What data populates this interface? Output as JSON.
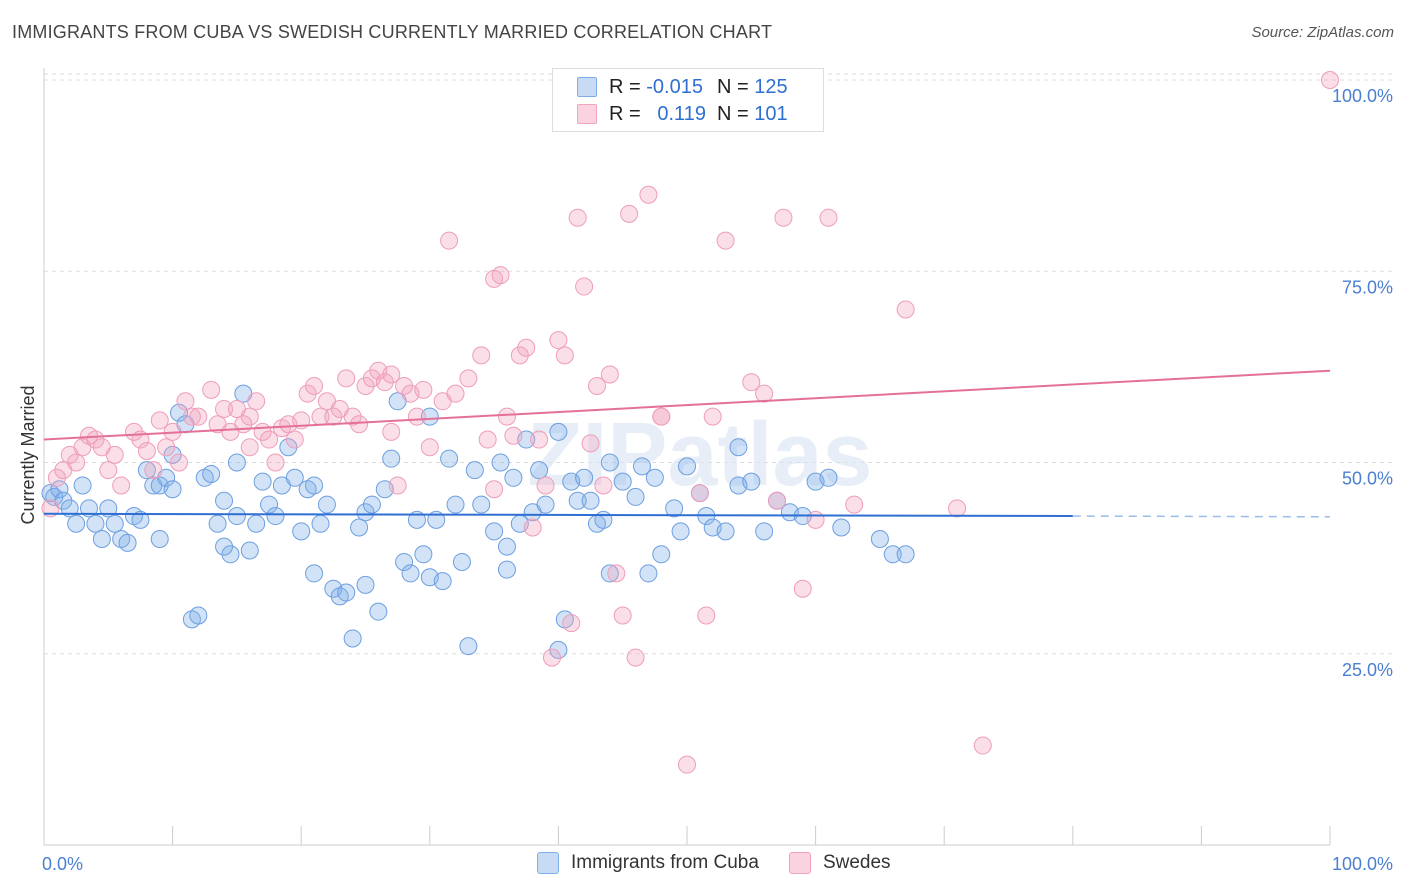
{
  "title": "IMMIGRANTS FROM CUBA VS SWEDISH CURRENTLY MARRIED CORRELATION CHART",
  "source": "Source: ZipAtlas.com",
  "watermark": "ZIPatlas",
  "legend": {
    "rows": [
      {
        "r_label": "R = ",
        "r_value": "-0.015",
        "n_label": "N = ",
        "n_value": "125",
        "color": "#7eaee8"
      },
      {
        "r_label": "R = ",
        "r_value": "0.119",
        "n_label": "N = ",
        "n_value": "101",
        "color": "#f2a3bd"
      }
    ]
  },
  "bottom_legend": [
    {
      "label": "Immigrants from Cuba",
      "color": "#7eaee8"
    },
    {
      "label": "Swedes",
      "color": "#f2a3bd"
    }
  ],
  "chart_data": {
    "type": "scatter",
    "ylabel": "Currently Married",
    "x_tick_labels": [
      "0.0%",
      "100.0%"
    ],
    "y_tick_labels": [
      "25.0%",
      "50.0%",
      "75.0%",
      "100.0%"
    ],
    "xlim": [
      0,
      100
    ],
    "ylim": [
      0,
      100
    ],
    "grid": true,
    "series": [
      {
        "name": "Immigrants from Cuba",
        "color": "#5b95dc",
        "trend": {
          "x0": 0,
          "y0": 43.3,
          "x1": 80,
          "y1": 43.0,
          "dashed_to": 100,
          "y_end": 42.9
        },
        "points": [
          [
            0.5,
            46
          ],
          [
            0.8,
            45.5
          ],
          [
            1.2,
            46.5
          ],
          [
            1.5,
            45
          ],
          [
            2,
            44
          ],
          [
            2.5,
            42
          ],
          [
            3,
            47
          ],
          [
            3.5,
            44
          ],
          [
            4,
            42
          ],
          [
            4.5,
            40
          ],
          [
            5,
            44
          ],
          [
            5.5,
            42
          ],
          [
            6,
            40
          ],
          [
            6.5,
            39.5
          ],
          [
            7,
            43
          ],
          [
            7.5,
            42.5
          ],
          [
            8,
            49
          ],
          [
            8.5,
            47
          ],
          [
            9,
            47
          ],
          [
            9.5,
            48
          ],
          [
            10,
            46.5
          ],
          [
            10.5,
            56.5
          ],
          [
            11,
            55
          ],
          [
            11.5,
            29.5
          ],
          [
            12,
            30
          ],
          [
            12.5,
            48
          ],
          [
            13,
            48.5
          ],
          [
            13.5,
            42
          ],
          [
            14,
            45
          ],
          [
            14.5,
            38
          ],
          [
            15,
            43
          ],
          [
            15.5,
            59
          ],
          [
            16,
            38.5
          ],
          [
            16.5,
            42
          ],
          [
            17,
            47.5
          ],
          [
            17.5,
            44.5
          ],
          [
            18,
            43
          ],
          [
            18.5,
            47
          ],
          [
            19,
            52
          ],
          [
            19.5,
            48
          ],
          [
            20,
            41
          ],
          [
            20.5,
            46.5
          ],
          [
            21,
            35.5
          ],
          [
            21.5,
            42
          ],
          [
            22,
            44.5
          ],
          [
            22.5,
            33.5
          ],
          [
            23,
            32.5
          ],
          [
            23.5,
            33
          ],
          [
            24,
            27
          ],
          [
            24.5,
            41.5
          ],
          [
            25,
            43.5
          ],
          [
            25.5,
            44.5
          ],
          [
            26,
            30.5
          ],
          [
            26.5,
            46.5
          ],
          [
            27,
            50.5
          ],
          [
            27.5,
            58
          ],
          [
            28,
            37
          ],
          [
            28.5,
            35.5
          ],
          [
            29,
            42.5
          ],
          [
            29.5,
            38
          ],
          [
            30,
            35
          ],
          [
            30.5,
            42.5
          ],
          [
            31,
            34.5
          ],
          [
            31.5,
            50.5
          ],
          [
            32,
            44.5
          ],
          [
            32.5,
            37
          ],
          [
            33,
            26
          ],
          [
            33.5,
            49
          ],
          [
            34,
            44.5
          ],
          [
            35,
            41
          ],
          [
            35.5,
            50
          ],
          [
            36,
            36
          ],
          [
            36.5,
            48
          ],
          [
            37,
            42
          ],
          [
            37.5,
            53
          ],
          [
            38,
            43.5
          ],
          [
            38.5,
            49
          ],
          [
            39,
            44.5
          ],
          [
            40,
            54
          ],
          [
            40.5,
            29.5
          ],
          [
            41,
            47.5
          ],
          [
            41.5,
            45
          ],
          [
            42,
            48
          ],
          [
            42.5,
            45
          ],
          [
            43,
            42
          ],
          [
            43.5,
            42.5
          ],
          [
            44,
            35.5
          ],
          [
            45,
            47.5
          ],
          [
            46,
            45.5
          ],
          [
            46.5,
            49.5
          ],
          [
            47,
            35.5
          ],
          [
            47.5,
            48
          ],
          [
            48,
            38
          ],
          [
            49,
            44
          ],
          [
            49.5,
            41
          ],
          [
            50,
            49.5
          ],
          [
            51,
            46
          ],
          [
            51.5,
            43
          ],
          [
            52,
            41.5
          ],
          [
            53,
            41
          ],
          [
            54,
            47
          ],
          [
            55,
            47.5
          ],
          [
            56,
            41
          ],
          [
            57,
            45
          ],
          [
            58,
            43.5
          ],
          [
            59,
            43
          ],
          [
            60,
            47.5
          ],
          [
            61,
            48
          ],
          [
            62,
            41.5
          ],
          [
            65,
            40
          ],
          [
            66,
            38
          ],
          [
            67,
            38
          ],
          [
            40,
            25.5
          ],
          [
            9,
            40
          ],
          [
            10,
            51
          ],
          [
            15,
            50
          ],
          [
            21,
            47
          ],
          [
            30,
            56
          ],
          [
            36,
            39
          ],
          [
            44,
            50
          ],
          [
            54,
            52
          ],
          [
            14,
            39
          ],
          [
            25,
            34
          ]
        ]
      },
      {
        "name": "Swedes",
        "color": "#f08fb0",
        "trend": {
          "x0": 0,
          "y0": 53.0,
          "x1": 100,
          "y1": 62.0
        },
        "points": [
          [
            0.5,
            44
          ],
          [
            1,
            48
          ],
          [
            1.5,
            49
          ],
          [
            2,
            51
          ],
          [
            2.5,
            50
          ],
          [
            3,
            52
          ],
          [
            3.5,
            53.5
          ],
          [
            4,
            53
          ],
          [
            4.5,
            52
          ],
          [
            5,
            49
          ],
          [
            5.5,
            51
          ],
          [
            6,
            47
          ],
          [
            7,
            54
          ],
          [
            7.5,
            53
          ],
          [
            8,
            51.5
          ],
          [
            8.5,
            49
          ],
          [
            9,
            55.5
          ],
          [
            9.5,
            52
          ],
          [
            10,
            54
          ],
          [
            10.5,
            50
          ],
          [
            11,
            58
          ],
          [
            11.5,
            56
          ],
          [
            12,
            56
          ],
          [
            13,
            59.5
          ],
          [
            13.5,
            55
          ],
          [
            14,
            57
          ],
          [
            14.5,
            54
          ],
          [
            15,
            57
          ],
          [
            15.5,
            55
          ],
          [
            16,
            56
          ],
          [
            16.5,
            58
          ],
          [
            17,
            54
          ],
          [
            17.5,
            53
          ],
          [
            18,
            50
          ],
          [
            18.5,
            54.5
          ],
          [
            19,
            55
          ],
          [
            19.5,
            53
          ],
          [
            20,
            55.5
          ],
          [
            20.5,
            59
          ],
          [
            21,
            60
          ],
          [
            21.5,
            56
          ],
          [
            22,
            58
          ],
          [
            22.5,
            56
          ],
          [
            23,
            57
          ],
          [
            23.5,
            61
          ],
          [
            24,
            56
          ],
          [
            24.5,
            55
          ],
          [
            25,
            60
          ],
          [
            25.5,
            61
          ],
          [
            26,
            62
          ],
          [
            26.5,
            60.5
          ],
          [
            27,
            54
          ],
          [
            27.5,
            47
          ],
          [
            28,
            60
          ],
          [
            28.5,
            59
          ],
          [
            29,
            56
          ],
          [
            29.5,
            59.5
          ],
          [
            30,
            52
          ],
          [
            31,
            58
          ],
          [
            31.5,
            79
          ],
          [
            32,
            59
          ],
          [
            33,
            61
          ],
          [
            34,
            64
          ],
          [
            34.5,
            53
          ],
          [
            35,
            74
          ],
          [
            35.5,
            74.5
          ],
          [
            36,
            56
          ],
          [
            36.5,
            53.5
          ],
          [
            37,
            64
          ],
          [
            37.5,
            65
          ],
          [
            38,
            41.5
          ],
          [
            38.5,
            53
          ],
          [
            39,
            47
          ],
          [
            39.5,
            24.5
          ],
          [
            40,
            66
          ],
          [
            40.5,
            64
          ],
          [
            41,
            29
          ],
          [
            41.5,
            82
          ],
          [
            42,
            73
          ],
          [
            42.5,
            52.5
          ],
          [
            43,
            60
          ],
          [
            43.5,
            47
          ],
          [
            44,
            61.5
          ],
          [
            44.5,
            35.5
          ],
          [
            45,
            30
          ],
          [
            45.5,
            82.5
          ],
          [
            46,
            24.5
          ],
          [
            47,
            85
          ],
          [
            48,
            56
          ],
          [
            50,
            10.5
          ],
          [
            50.5,
            100
          ],
          [
            51,
            46
          ],
          [
            51.5,
            30
          ],
          [
            52,
            56
          ],
          [
            53,
            79
          ],
          [
            55,
            60.5
          ],
          [
            56,
            59
          ],
          [
            57,
            45
          ],
          [
            57.5,
            82
          ],
          [
            59,
            33.5
          ],
          [
            60,
            42.5
          ],
          [
            61,
            82
          ],
          [
            63,
            44.5
          ],
          [
            67,
            70
          ],
          [
            71,
            44
          ],
          [
            73,
            13
          ],
          [
            100,
            100
          ],
          [
            27,
            61.5
          ],
          [
            16,
            52
          ],
          [
            35,
            46.5
          ],
          [
            48,
            56
          ]
        ]
      }
    ]
  }
}
